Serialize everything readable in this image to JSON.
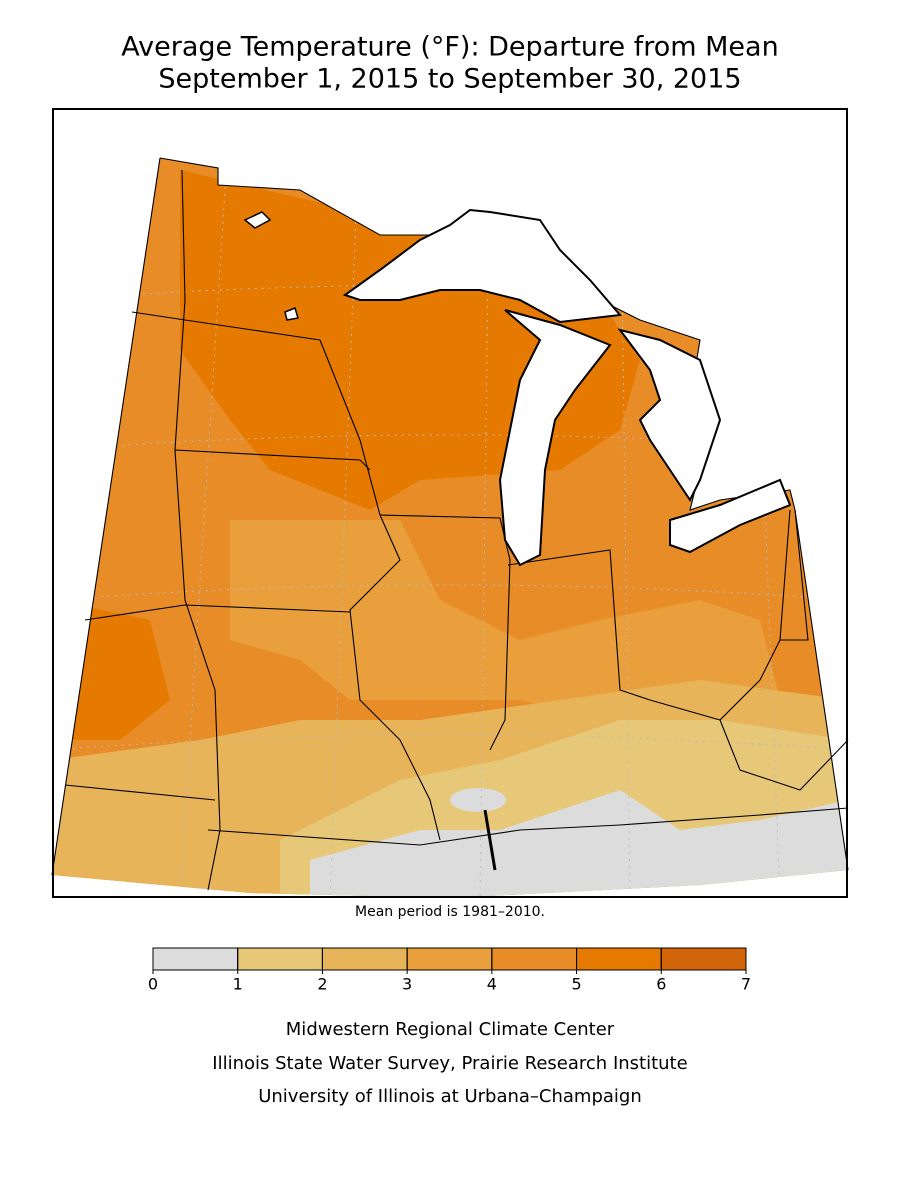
{
  "title": "Average Temperature (°F): Departure from Mean",
  "subtitle": "September 1, 2015 to September 30, 2015",
  "note": "Mean period is 1981–2010.",
  "legend": {
    "ticks": [
      0,
      1,
      2,
      3,
      4,
      5,
      6,
      7
    ],
    "colors": [
      "#dcdcdc",
      "#e6c878",
      "#e8b45a",
      "#e89f3c",
      "#e88c28",
      "#e67a00",
      "#d2640a"
    ]
  },
  "credits": [
    "Midwestern Regional Climate Center",
    "Illinois State Water Survey, Prairie Research Institute",
    "University of Illinois at Urbana–Champaign"
  ]
}
